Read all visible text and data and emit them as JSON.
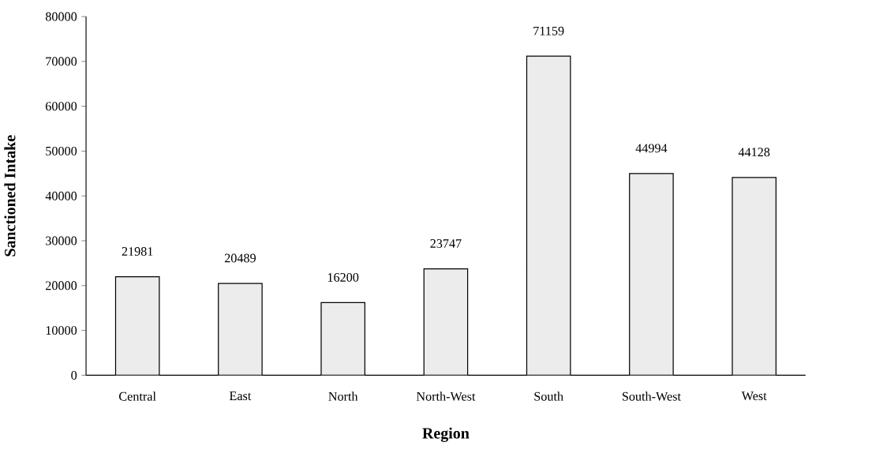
{
  "chart_data": {
    "type": "bar",
    "xlabel": "Region",
    "ylabel": "Sanctioned Intake",
    "categories": [
      "Central",
      "East",
      "North",
      "North-West",
      "South",
      "South-West",
      "West"
    ],
    "values": [
      21981,
      20489,
      16200,
      23747,
      71159,
      44994,
      44128
    ],
    "color": "#ececec",
    "data_labels": true,
    "ylim": [
      0,
      80000
    ],
    "yticks": [
      0,
      10000,
      20000,
      30000,
      40000,
      50000,
      60000,
      70000,
      80000
    ]
  }
}
